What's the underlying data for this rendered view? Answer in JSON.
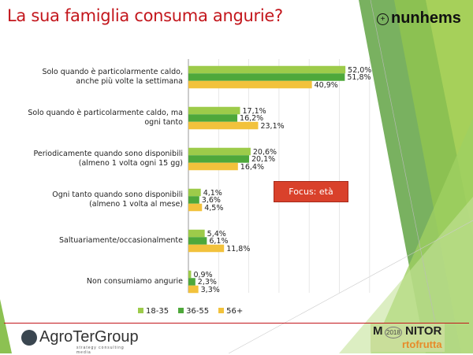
{
  "header": {
    "title": "La sua famiglia consuma angurie?",
    "brand": "nunhems"
  },
  "chart_data": {
    "type": "bar",
    "orientation": "horizontal",
    "title": "La sua famiglia consuma angurie?",
    "categories": [
      [
        "Solo quando è particolarmente caldo,",
        "anche più volte la settimana"
      ],
      [
        "Solo quando è particolarmente caldo, ma",
        "ogni tanto"
      ],
      [
        "Periodicamente quando sono disponibili",
        "(almeno 1 volta ogni 15 gg)"
      ],
      [
        "Ogni tanto quando sono disponibili",
        "(almeno 1 volta al mese)"
      ],
      [
        "Saltuariamente/occasionalmente"
      ],
      [
        "Non consumiamo angurie"
      ]
    ],
    "series": [
      {
        "name": "18-35",
        "color": "#9dcb4a",
        "values": [
          52.0,
          17.1,
          20.6,
          4.1,
          5.4,
          0.9
        ],
        "labels": [
          "52,0%",
          "17,1%",
          "20,6%",
          "4,1%",
          "5,4%",
          "0,9%"
        ]
      },
      {
        "name": "36-55",
        "color": "#4ea83b",
        "values": [
          51.8,
          16.2,
          20.1,
          3.6,
          6.1,
          2.3
        ],
        "labels": [
          "51,8%",
          "16,2%",
          "20,1%",
          "3,6%",
          "6,1%",
          "2,3%"
        ]
      },
      {
        "name": "56+",
        "color": "#f2c23c",
        "values": [
          40.9,
          23.1,
          16.4,
          4.5,
          11.8,
          3.3
        ],
        "labels": [
          "40,9%",
          "23,1%",
          "16,4%",
          "4,5%",
          "11,8%",
          "3,3%"
        ]
      }
    ],
    "xlim": [
      0,
      60
    ],
    "grid": true,
    "legend": "bottom"
  },
  "annotation": "Focus: età",
  "footer": {
    "left_logo": "AgroTerGroup",
    "left_tagline": "strategy consulting media",
    "right_logo_m": "M",
    "right_logo_year": "2018",
    "right_logo_rest": "NITOR",
    "right_logo_sub": "rtofrutta"
  }
}
